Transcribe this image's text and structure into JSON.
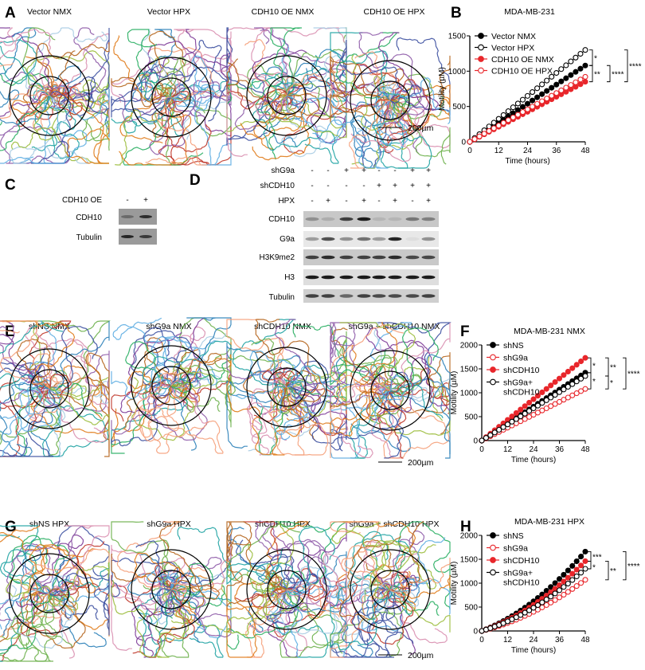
{
  "panel_labels": [
    "A",
    "B",
    "C",
    "D",
    "E",
    "F",
    "G",
    "H"
  ],
  "track_panels": [
    {
      "panel": "A",
      "titles": [
        "Vector NMX",
        "Vector HPX",
        "CDH10 OE NMX",
        "CDH10 OE HPX"
      ],
      "scale_bar": "200µm"
    },
    {
      "panel": "E",
      "titles": [
        "shNS NMX",
        "shG9a NMX",
        "shCDH10 NMX",
        "shG9a + shCDH10 NMX"
      ],
      "scale_bar": "200µm"
    },
    {
      "panel": "G",
      "titles": [
        "shNS HPX",
        "shG9a HPX",
        "shCDH10 HPX",
        "shG9a + shCDH10 HPX"
      ],
      "scale_bar": "200µm"
    }
  ],
  "blot_c": {
    "condition_label": "CDH10 OE",
    "lanes": [
      "-",
      "+"
    ],
    "rows": [
      {
        "label": "CDH10",
        "intensity": [
          0.35,
          0.8
        ]
      },
      {
        "label": "Tubulin",
        "intensity": [
          0.85,
          0.7
        ]
      }
    ]
  },
  "blot_d": {
    "conditions": [
      {
        "label": "shG9a",
        "lanes": [
          "-",
          "-",
          "+",
          "+",
          "-",
          "-",
          "+",
          "+"
        ]
      },
      {
        "label": "shCDH10",
        "lanes": [
          "-",
          "-",
          "-",
          "-",
          "+",
          "+",
          "+",
          "+"
        ]
      },
      {
        "label": "HPX",
        "lanes": [
          "-",
          "+",
          "-",
          "+",
          "-",
          "+",
          "-",
          "+"
        ]
      }
    ],
    "rows": [
      {
        "label": "CDH10",
        "intensity": [
          0.3,
          0.15,
          0.75,
          0.95,
          0.1,
          0.1,
          0.45,
          0.4
        ]
      },
      {
        "label": "G9a",
        "intensity": [
          0.35,
          0.7,
          0.4,
          0.55,
          0.35,
          0.9,
          0.05,
          0.4
        ]
      },
      {
        "label": "H3K9me2",
        "intensity": [
          0.75,
          0.85,
          0.75,
          0.75,
          0.75,
          0.85,
          0.7,
          0.7
        ]
      },
      {
        "label": "H3",
        "intensity": [
          0.95,
          0.95,
          0.95,
          0.95,
          0.95,
          0.95,
          0.95,
          0.95
        ]
      },
      {
        "label": "Tubulin",
        "intensity": [
          0.75,
          0.75,
          0.55,
          0.75,
          0.7,
          0.7,
          0.7,
          0.75
        ]
      }
    ]
  },
  "chart_data": [
    {
      "type": "line",
      "title": "MDA-MB-231",
      "xlabel": "Time (hours)",
      "ylabel": "Motility (µM)",
      "xlim": [
        0,
        48
      ],
      "ylim": [
        0,
        1500
      ],
      "xticks": [
        0,
        12,
        24,
        36,
        48
      ],
      "yticks": [
        0,
        500,
        1000,
        1500
      ],
      "legend": "top-left",
      "grid": false,
      "x": [
        0,
        2,
        4,
        6,
        8,
        10,
        12,
        14,
        16,
        18,
        20,
        22,
        24,
        26,
        28,
        30,
        32,
        34,
        36,
        38,
        40,
        42,
        44,
        46,
        48
      ],
      "series": [
        {
          "name": "Vector NMX",
          "color": "#000000",
          "marker": "filled",
          "values": [
            0,
            45,
            90,
            135,
            180,
            225,
            270,
            315,
            360,
            405,
            450,
            495,
            540,
            585,
            630,
            675,
            720,
            765,
            810,
            855,
            900,
            945,
            990,
            1035,
            1080
          ]
        },
        {
          "name": "Vector HPX",
          "color": "#000000",
          "marker": "open",
          "values": [
            0,
            54,
            108,
            163,
            217,
            271,
            325,
            379,
            433,
            488,
            542,
            596,
            650,
            704,
            758,
            813,
            867,
            921,
            975,
            1029,
            1083,
            1138,
            1192,
            1246,
            1300
          ]
        },
        {
          "name": "CDH10 OE NMX",
          "color": "#e8262b",
          "marker": "filled",
          "values": [
            0,
            35,
            71,
            106,
            142,
            177,
            213,
            248,
            283,
            319,
            354,
            390,
            425,
            460,
            496,
            531,
            567,
            602,
            638,
            673,
            708,
            744,
            779,
            815,
            850
          ]
        },
        {
          "name": "CDH10 OE HPX",
          "color": "#e8262b",
          "marker": "open",
          "values": [
            0,
            38,
            77,
            115,
            153,
            192,
            230,
            268,
            307,
            345,
            383,
            422,
            460,
            498,
            537,
            575,
            613,
            652,
            690,
            728,
            767,
            805,
            843,
            882,
            920
          ]
        }
      ],
      "significance": [
        {
          "text": "*",
          "from": "Vector HPX",
          "to": "Vector NMX",
          "level": 0
        },
        {
          "text": "**",
          "from": "Vector NMX",
          "to": "CDH10 OE NMX",
          "level": 0
        },
        {
          "text": "****",
          "from": "Vector NMX",
          "to": "CDH10 OE NMX",
          "level": 1
        },
        {
          "text": "****",
          "from": "Vector HPX",
          "to": "CDH10 OE NMX",
          "level": 2
        }
      ]
    },
    {
      "type": "line",
      "title": "MDA-MB-231 NMX",
      "xlabel": "Time (hours)",
      "ylabel": "Motility (µM)",
      "xlim": [
        0,
        48
      ],
      "ylim": [
        0,
        2000
      ],
      "xticks": [
        0,
        12,
        24,
        36,
        48
      ],
      "yticks": [
        0,
        500,
        1000,
        1500,
        2000
      ],
      "legend": "top-left",
      "grid": false,
      "x": [
        0,
        2,
        4,
        6,
        8,
        10,
        12,
        14,
        16,
        18,
        20,
        22,
        24,
        26,
        28,
        30,
        32,
        34,
        36,
        38,
        40,
        42,
        44,
        46,
        48
      ],
      "series": [
        {
          "name": "shNS",
          "color": "#000000",
          "marker": "filled",
          "values": [
            0,
            59,
            118,
            178,
            237,
            296,
            355,
            414,
            473,
            533,
            592,
            651,
            710,
            769,
            828,
            888,
            947,
            1006,
            1065,
            1124,
            1183,
            1243,
            1302,
            1361,
            1420
          ]
        },
        {
          "name": "shG9a",
          "color": "#e8262b",
          "marker": "open",
          "values": [
            0,
            45,
            90,
            135,
            180,
            225,
            270,
            315,
            360,
            405,
            450,
            495,
            540,
            585,
            630,
            675,
            720,
            765,
            810,
            855,
            900,
            945,
            990,
            1035,
            1080
          ]
        },
        {
          "name": "shCDH10",
          "color": "#e8262b",
          "marker": "filled",
          "values": [
            0,
            72,
            144,
            216,
            288,
            360,
            433,
            505,
            577,
            649,
            721,
            793,
            865,
            937,
            1009,
            1081,
            1153,
            1225,
            1298,
            1370,
            1442,
            1514,
            1586,
            1658,
            1730
          ]
        },
        {
          "name": "shG9a+\nshCDH10",
          "color": "#000000",
          "marker": "open",
          "values": [
            0,
            56,
            113,
            169,
            225,
            281,
            338,
            394,
            450,
            506,
            563,
            619,
            675,
            731,
            788,
            844,
            900,
            956,
            1013,
            1069,
            1125,
            1181,
            1238,
            1294,
            1350
          ]
        }
      ],
      "significance": [
        {
          "text": "*",
          "from": "shCDH10",
          "to": "shNS",
          "level": 0
        },
        {
          "text": "*",
          "from": "shNS",
          "to": "shG9a",
          "level": 0
        },
        {
          "text": "**",
          "from": "shCDH10",
          "to": "shG9a+\nshCDH10",
          "level": 1
        },
        {
          "text": "*",
          "from": "shG9a+\nshCDH10",
          "to": "shG9a",
          "level": 1
        },
        {
          "text": "****",
          "from": "shCDH10",
          "to": "shG9a",
          "level": 2
        }
      ]
    },
    {
      "type": "line",
      "title": "MDA-MB-231 HPX",
      "xlabel": "Time (hours)",
      "ylabel": "Motility (µM)",
      "xlim": [
        0,
        48
      ],
      "ylim": [
        0,
        2000
      ],
      "xticks": [
        0,
        12,
        24,
        36,
        48
      ],
      "yticks": [
        0,
        500,
        1000,
        1500,
        2000
      ],
      "legend": "top-left",
      "grid": false,
      "x": [
        0,
        2,
        4,
        6,
        8,
        10,
        12,
        14,
        16,
        18,
        20,
        22,
        24,
        26,
        28,
        30,
        32,
        34,
        36,
        38,
        40,
        42,
        44,
        46,
        48
      ],
      "series": [
        {
          "name": "shNS",
          "color": "#000000",
          "marker": "filled",
          "values": [
            0,
            36,
            74,
            116,
            160,
            207,
            257,
            311,
            366,
            426,
            488,
            552,
            620,
            691,
            764,
            841,
            920,
            1002,
            1088,
            1176,
            1266,
            1361,
            1458,
            1557,
            1660
          ]
        },
        {
          "name": "shG9a",
          "color": "#e8262b",
          "marker": "open",
          "values": [
            0,
            23,
            48,
            75,
            103,
            134,
            166,
            201,
            236,
            275,
            315,
            356,
            400,
            446,
            493,
            542,
            593,
            646,
            702,
            759,
            817,
            878,
            940,
            1004,
            1070
          ]
        },
        {
          "name": "shCDH10",
          "color": "#e8262b",
          "marker": "filled",
          "values": [
            0,
            32,
            65,
            102,
            141,
            182,
            226,
            274,
            322,
            375,
            429,
            486,
            546,
            608,
            672,
            740,
            810,
            882,
            957,
            1035,
            1114,
            1198,
            1283,
            1370,
            1460
          ]
        },
        {
          "name": "shG9a+\nshCDH10",
          "color": "#000000",
          "marker": "open",
          "values": [
            0,
            28,
            58,
            91,
            125,
            162,
            201,
            244,
            287,
            334,
            382,
            432,
            485,
            541,
            598,
            659,
            720,
            785,
            852,
            921,
            991,
            1066,
            1142,
            1219,
            1300
          ]
        }
      ],
      "significance": [
        {
          "text": "***",
          "from": "shNS",
          "to": "shCDH10",
          "level": 0
        },
        {
          "text": "*",
          "from": "shCDH10",
          "to": "shG9a+\nshCDH10",
          "level": 0
        },
        {
          "text": "**",
          "from": "shCDH10",
          "to": "shG9a",
          "level": 1
        },
        {
          "text": "****",
          "from": "shNS",
          "to": "shG9a",
          "level": 2
        }
      ]
    }
  ]
}
